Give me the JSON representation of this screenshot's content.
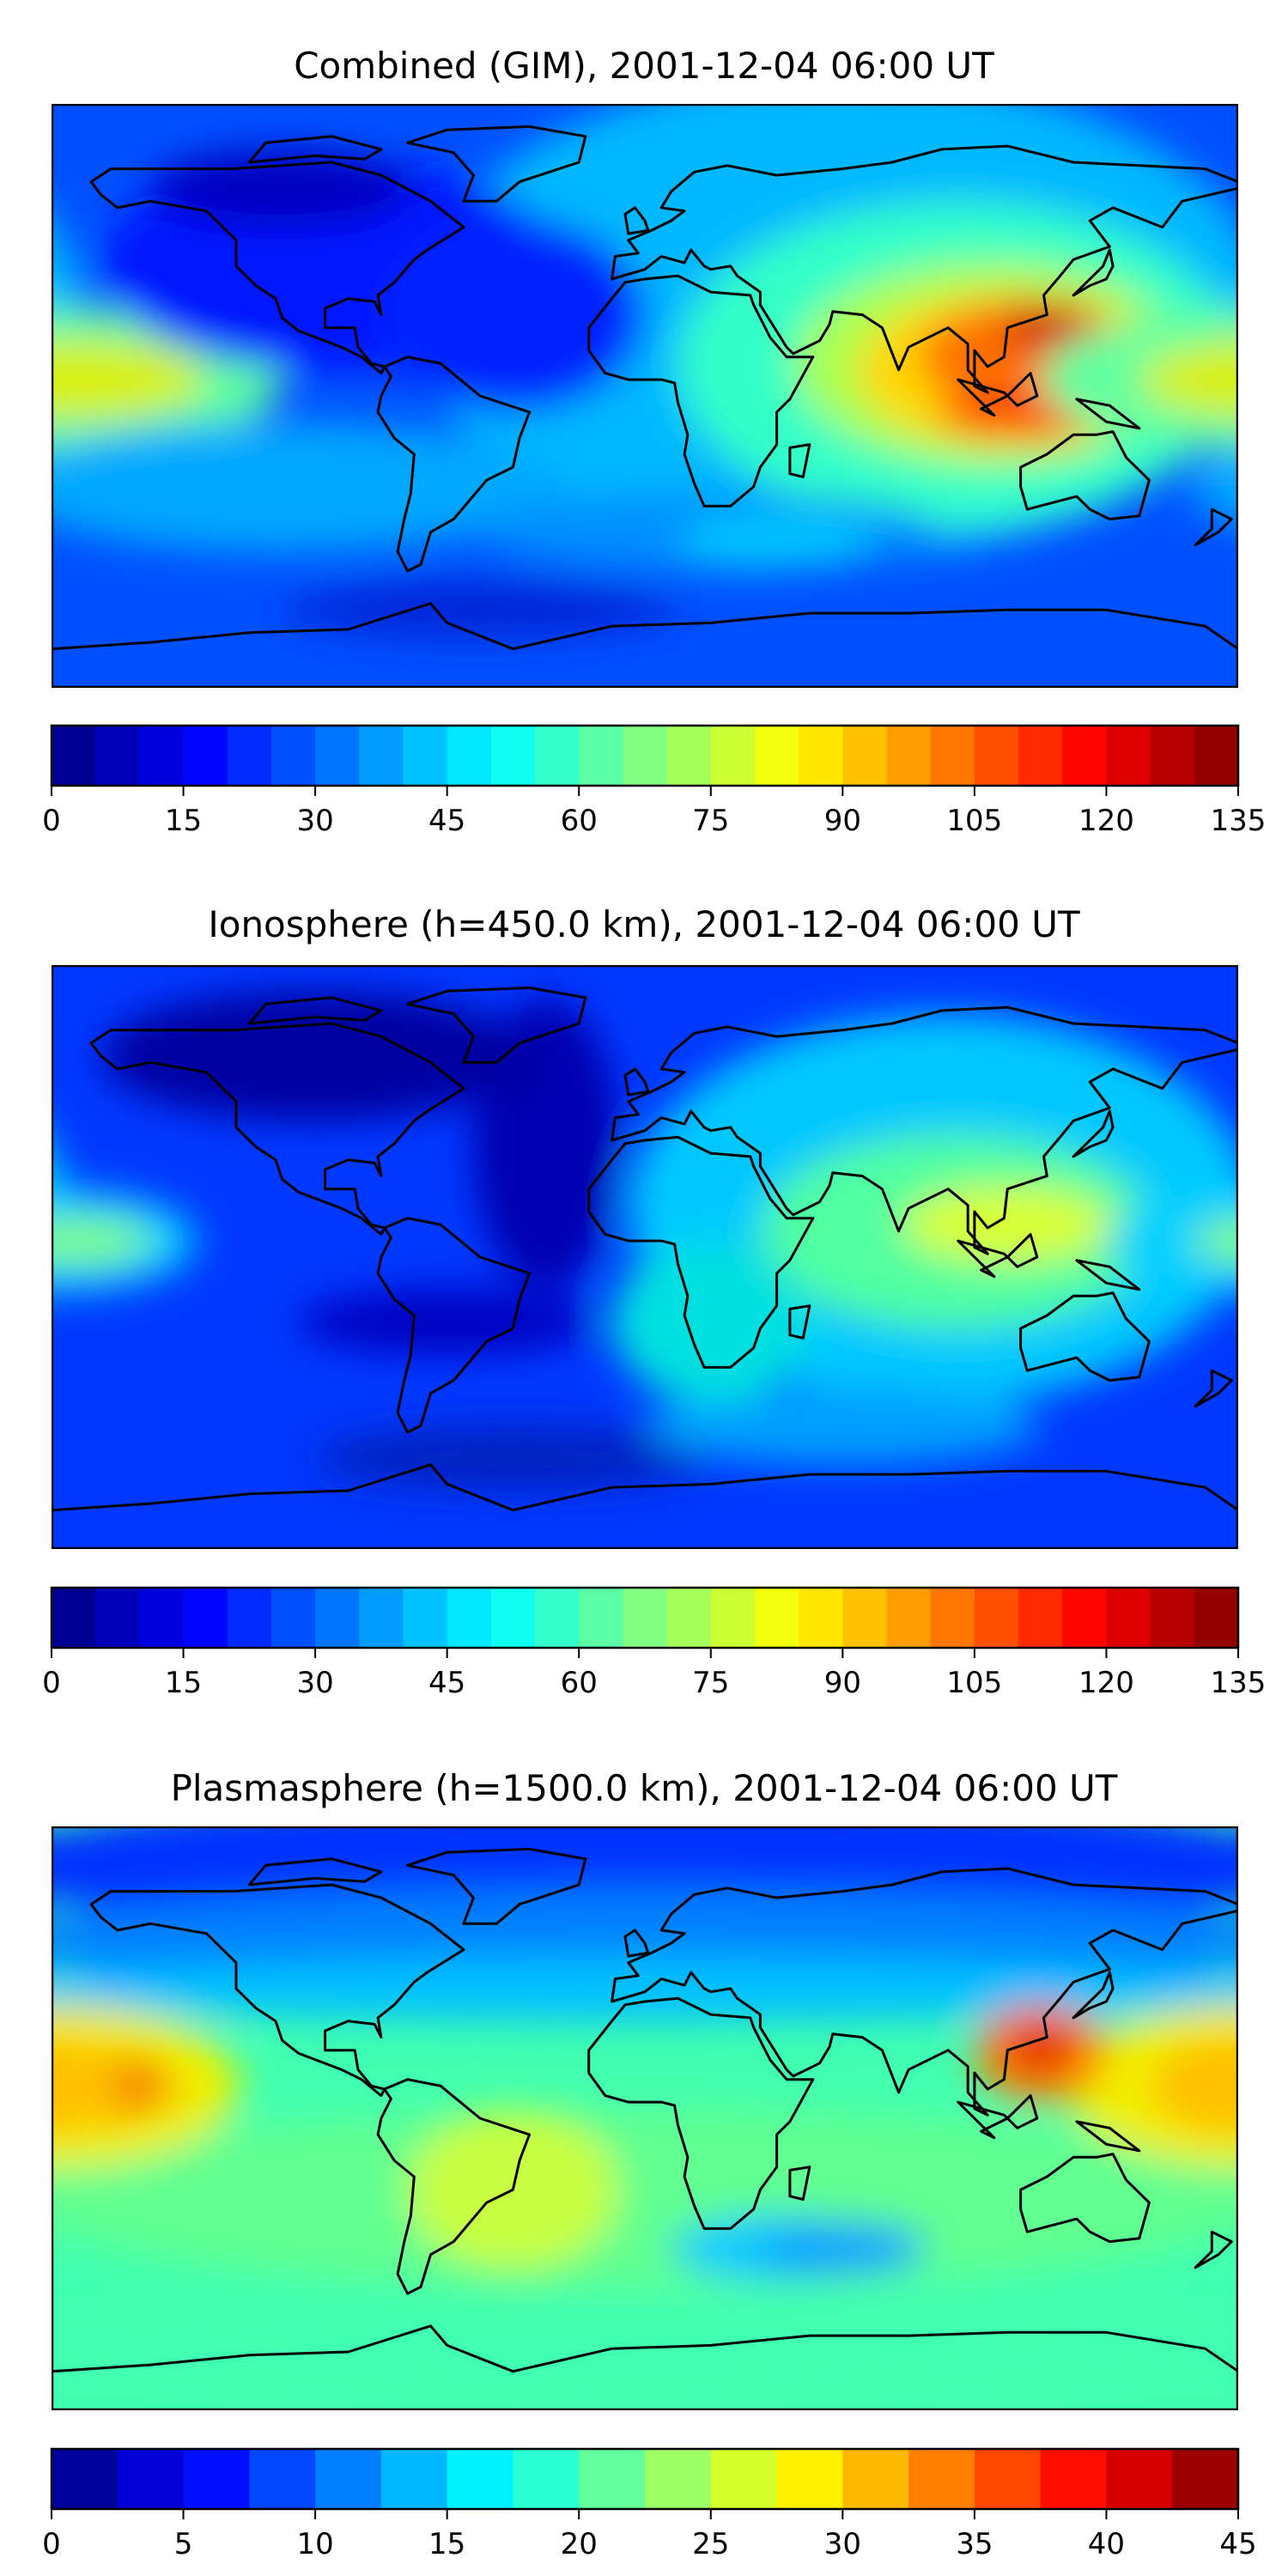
{
  "chart_data": [
    {
      "type": "heatmap",
      "title": "Combined (GIM), 2001-12-04 06:00 UT",
      "xlabel": "",
      "ylabel": "",
      "colormap": "jet",
      "colorbar": {
        "min": 0,
        "max": 135,
        "step": 5,
        "ticks": [
          "0",
          "15",
          "30",
          "45",
          "60",
          "75",
          "90",
          "105",
          "120",
          "135"
        ]
      },
      "features": "coastlines"
    },
    {
      "type": "heatmap",
      "title": "Ionosphere  (h=450.0 km), 2001-12-04 06:00 UT",
      "xlabel": "",
      "ylabel": "",
      "colormap": "jet",
      "colorbar": {
        "min": 0,
        "max": 135,
        "step": 5,
        "ticks": [
          "0",
          "15",
          "30",
          "45",
          "60",
          "75",
          "90",
          "105",
          "120",
          "135"
        ]
      },
      "features": "coastlines"
    },
    {
      "type": "heatmap",
      "title": "Plasmasphere (h=1500.0 km), 2001-12-04 06:00 UT",
      "xlabel": "",
      "ylabel": "",
      "colormap": "jet",
      "colorbar": {
        "min": 0,
        "max": 45,
        "step": 2.5,
        "ticks": [
          "0",
          "5",
          "10",
          "15",
          "20",
          "25",
          "30",
          "35",
          "40",
          "45"
        ]
      },
      "features": "coastlines"
    }
  ]
}
